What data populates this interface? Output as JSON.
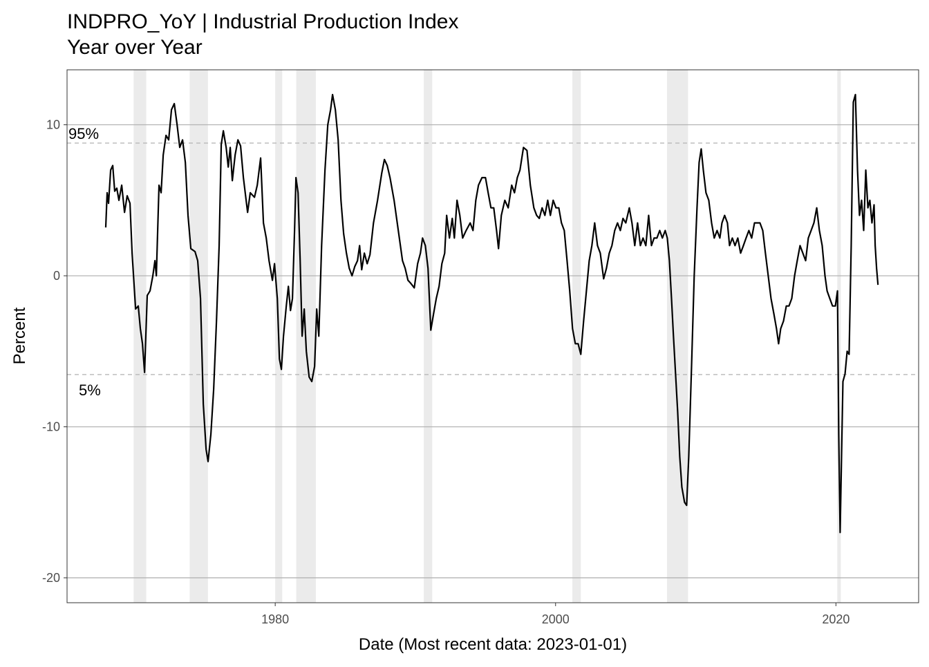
{
  "chart_data": {
    "type": "line",
    "title": "INDPRO_YoY | Industrial Production Index",
    "subtitle": "Year over Year",
    "xlabel": "Date (Most recent data: 2023-01-01)",
    "ylabel": "Percent",
    "color": "#000000",
    "xlim": [
      1965.15,
      2025.9
    ],
    "ylim": [
      -21.65,
      13.64
    ],
    "xticks": [
      1980,
      2000,
      2020
    ],
    "yticks": [
      -20,
      -10,
      0,
      10
    ],
    "grid": true,
    "recessions": [
      [
        1969.9,
        1970.8
      ],
      [
        1973.9,
        1975.2
      ],
      [
        1980.0,
        1980.5
      ],
      [
        1981.5,
        1982.9
      ],
      [
        1990.6,
        1991.2
      ],
      [
        2001.2,
        2001.8
      ],
      [
        2007.95,
        2009.45
      ],
      [
        2020.1,
        2020.35
      ]
    ],
    "reference_lines": [
      {
        "label": "95%",
        "value": 8.79
      },
      {
        "label": "5%",
        "value": -6.54
      }
    ],
    "x": [
      1967.91,
      1968.01,
      1968.11,
      1968.26,
      1968.41,
      1968.55,
      1968.7,
      1968.85,
      1969.05,
      1969.25,
      1969.44,
      1969.64,
      1969.79,
      1970.04,
      1970.23,
      1970.38,
      1970.53,
      1970.68,
      1970.87,
      1971.07,
      1971.27,
      1971.42,
      1971.52,
      1971.71,
      1971.86,
      1972.01,
      1972.21,
      1972.4,
      1972.6,
      1972.8,
      1973.0,
      1973.19,
      1973.39,
      1973.59,
      1973.78,
      1973.98,
      1974.28,
      1974.47,
      1974.67,
      1974.87,
      1975.07,
      1975.21,
      1975.41,
      1975.61,
      1975.81,
      1976.0,
      1976.15,
      1976.3,
      1976.5,
      1976.65,
      1976.79,
      1976.94,
      1977.14,
      1977.34,
      1977.53,
      1977.73,
      1978.03,
      1978.22,
      1978.52,
      1978.72,
      1978.96,
      1979.16,
      1979.36,
      1979.56,
      1979.8,
      1979.95,
      1980.15,
      1980.3,
      1980.44,
      1980.59,
      1980.79,
      1980.94,
      1981.09,
      1981.23,
      1981.38,
      1981.48,
      1981.63,
      1981.78,
      1981.92,
      1982.07,
      1982.22,
      1982.42,
      1982.61,
      1982.81,
      1982.96,
      1983.11,
      1983.31,
      1983.55,
      1983.75,
      1983.95,
      1984.09,
      1984.29,
      1984.49,
      1984.69,
      1984.88,
      1985.08,
      1985.28,
      1985.48,
      1985.67,
      1985.87,
      1986.02,
      1986.17,
      1986.36,
      1986.56,
      1986.76,
      1987.01,
      1987.3,
      1987.6,
      1987.79,
      1987.99,
      1988.19,
      1988.48,
      1988.78,
      1989.08,
      1989.27,
      1989.47,
      1989.67,
      1989.92,
      1990.16,
      1990.36,
      1990.51,
      1990.71,
      1990.9,
      1991.1,
      1991.3,
      1991.49,
      1991.69,
      1991.89,
      1992.09,
      1992.23,
      1992.43,
      1992.63,
      1992.78,
      1992.97,
      1993.17,
      1993.37,
      1993.62,
      1993.91,
      1994.11,
      1994.31,
      1994.5,
      1994.75,
      1995.0,
      1995.19,
      1995.39,
      1995.59,
      1995.79,
      1995.93,
      1996.13,
      1996.38,
      1996.62,
      1996.87,
      1997.07,
      1997.27,
      1997.46,
      1997.71,
      1997.96,
      1998.2,
      1998.45,
      1998.65,
      1998.84,
      1999.04,
      1999.24,
      1999.44,
      1999.63,
      1999.83,
      2000.03,
      2000.23,
      2000.42,
      2000.62,
      2000.82,
      2001.01,
      2001.21,
      2001.41,
      2001.61,
      2001.8,
      2002.0,
      2002.2,
      2002.4,
      2002.59,
      2002.79,
      2002.99,
      2003.19,
      2003.43,
      2003.63,
      2003.83,
      2004.02,
      2004.22,
      2004.42,
      2004.62,
      2004.81,
      2005.01,
      2005.26,
      2005.45,
      2005.65,
      2005.85,
      2006.05,
      2006.24,
      2006.44,
      2006.64,
      2006.84,
      2007.03,
      2007.23,
      2007.43,
      2007.62,
      2007.82,
      2007.97,
      2008.12,
      2008.27,
      2008.41,
      2008.56,
      2008.71,
      2008.86,
      2009.01,
      2009.2,
      2009.35,
      2009.5,
      2009.7,
      2009.89,
      2010.09,
      2010.24,
      2010.39,
      2010.54,
      2010.73,
      2010.93,
      2011.13,
      2011.32,
      2011.52,
      2011.72,
      2011.87,
      2012.06,
      2012.26,
      2012.41,
      2012.61,
      2012.8,
      2013.0,
      2013.2,
      2013.4,
      2013.59,
      2013.79,
      2013.99,
      2014.19,
      2014.38,
      2014.58,
      2014.78,
      2014.97,
      2015.17,
      2015.37,
      2015.57,
      2015.76,
      2015.91,
      2016.06,
      2016.26,
      2016.46,
      2016.65,
      2016.85,
      2017.05,
      2017.24,
      2017.44,
      2017.64,
      2017.84,
      2018.03,
      2018.23,
      2018.43,
      2018.63,
      2018.82,
      2019.02,
      2019.22,
      2019.37,
      2019.56,
      2019.76,
      2019.96,
      2020.11,
      2020.2,
      2020.3,
      2020.4,
      2020.5,
      2020.65,
      2020.8,
      2020.94,
      2021.09,
      2021.24,
      2021.39,
      2021.54,
      2021.68,
      2021.83,
      2021.98,
      2022.13,
      2022.28,
      2022.42,
      2022.57,
      2022.72,
      2022.8,
      2022.9,
      2023.0
    ],
    "values": [
      3.2,
      5.5,
      4.8,
      7.0,
      7.3,
      5.6,
      5.8,
      5.0,
      6.0,
      4.2,
      5.3,
      4.8,
      1.5,
      -2.2,
      -2.0,
      -3.5,
      -4.5,
      -6.4,
      -1.3,
      -1.0,
      0.0,
      1.0,
      0.0,
      6.0,
      5.5,
      8.0,
      9.3,
      9.0,
      11.0,
      11.4,
      10.0,
      8.5,
      9.0,
      7.5,
      4.0,
      1.8,
      1.6,
      1.0,
      -1.5,
      -8.5,
      -11.5,
      -12.3,
      -10.5,
      -7.5,
      -3.0,
      2.0,
      8.7,
      9.6,
      8.5,
      7.2,
      8.5,
      6.3,
      8.0,
      9.0,
      8.6,
      6.5,
      4.2,
      5.5,
      5.2,
      6.0,
      7.8,
      3.5,
      2.5,
      1.0,
      -0.3,
      0.8,
      -1.5,
      -5.5,
      -6.2,
      -4.0,
      -2.0,
      -0.7,
      -2.3,
      -1.5,
      3.0,
      6.5,
      5.5,
      1.0,
      -4.0,
      -2.2,
      -5.0,
      -6.7,
      -7.0,
      -6.0,
      -2.2,
      -4.0,
      2.0,
      7.0,
      10.0,
      11.0,
      12.0,
      11.0,
      9.0,
      5.0,
      2.8,
      1.5,
      0.5,
      0.0,
      0.6,
      1.0,
      2.0,
      0.4,
      1.5,
      0.8,
      1.4,
      3.5,
      5.0,
      6.8,
      7.7,
      7.3,
      6.5,
      5.0,
      3.0,
      1.0,
      0.5,
      -0.3,
      -0.5,
      -0.8,
      0.8,
      1.5,
      2.5,
      2.0,
      0.5,
      -3.6,
      -2.5,
      -1.5,
      -0.7,
      0.8,
      1.5,
      4.0,
      2.5,
      3.8,
      2.5,
      5.0,
      4.0,
      2.5,
      3.0,
      3.5,
      3.0,
      5.0,
      6.0,
      6.5,
      6.5,
      5.5,
      4.5,
      4.5,
      3.0,
      1.8,
      4.0,
      5.0,
      4.5,
      6.0,
      5.5,
      6.5,
      7.0,
      8.5,
      8.3,
      6.0,
      4.5,
      4.0,
      3.8,
      4.5,
      4.0,
      5.0,
      4.0,
      5.0,
      4.5,
      4.5,
      3.5,
      3.0,
      1.0,
      -1.0,
      -3.5,
      -4.5,
      -4.5,
      -5.2,
      -3.0,
      -1.0,
      1.0,
      2.0,
      3.5,
      2.0,
      1.5,
      -0.2,
      0.5,
      1.5,
      2.0,
      3.0,
      3.5,
      3.0,
      3.8,
      3.5,
      4.5,
      3.5,
      2.0,
      3.5,
      2.0,
      2.5,
      2.0,
      4.0,
      2.0,
      2.5,
      2.5,
      3.0,
      2.5,
      3.0,
      2.5,
      1.0,
      -1.5,
      -4.0,
      -6.5,
      -9.0,
      -12.0,
      -14.0,
      -15.0,
      -15.2,
      -12.0,
      -6.0,
      0.0,
      4.5,
      7.5,
      8.4,
      7.0,
      5.5,
      5.0,
      3.5,
      2.5,
      3.0,
      2.5,
      3.5,
      4.0,
      3.5,
      2.0,
      2.5,
      2.0,
      2.5,
      1.5,
      2.0,
      2.5,
      3.0,
      2.5,
      3.5,
      3.5,
      3.5,
      3.0,
      1.5,
      0.0,
      -1.5,
      -2.5,
      -3.5,
      -4.5,
      -3.5,
      -3.0,
      -2.0,
      -2.0,
      -1.5,
      0.0,
      1.0,
      2.0,
      1.5,
      1.0,
      2.5,
      3.0,
      3.5,
      4.5,
      3.0,
      2.0,
      0.0,
      -1.0,
      -1.5,
      -2.0,
      -2.0,
      -1.0,
      -10.5,
      -17.0,
      -12.0,
      -7.0,
      -6.5,
      -5.0,
      -5.2,
      2.0,
      11.5,
      12.0,
      7.0,
      4.0,
      5.0,
      3.0,
      7.0,
      4.5,
      5.0,
      3.5,
      4.7,
      2.0,
      0.5,
      -0.6
    ]
  }
}
